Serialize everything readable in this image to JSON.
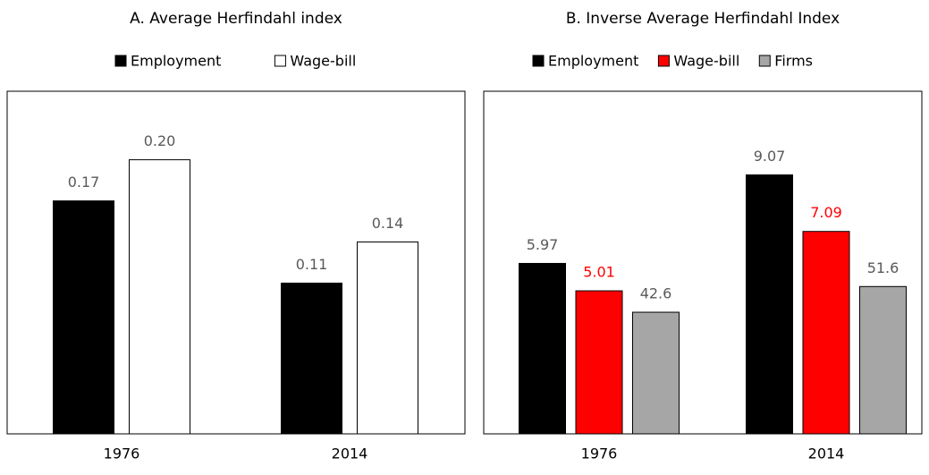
{
  "chart_data": [
    {
      "type": "bar",
      "title": "A. Average Herfindahl index",
      "categories": [
        "1976",
        "2014"
      ],
      "ylim": [
        0,
        0.25
      ],
      "series": [
        {
          "name": "Employment",
          "color": "#000000",
          "label_color": "#595959",
          "values": [
            0.17,
            0.11
          ],
          "value_labels": [
            "0.17",
            "0.11"
          ]
        },
        {
          "name": "Wage-bill",
          "color": "#ffffff",
          "label_color": "#595959",
          "values": [
            0.2,
            0.14
          ],
          "value_labels": [
            "0.20",
            "0.14"
          ]
        }
      ]
    },
    {
      "type": "bar",
      "title": "B. Inverse Average Herfindahl Index",
      "categories": [
        "1976",
        "2014"
      ],
      "ylim": [
        0,
        12
      ],
      "y2lim": [
        0,
        120
      ],
      "series": [
        {
          "name": "Employment",
          "color": "#000000",
          "label_color": "#595959",
          "values": [
            5.97,
            9.07
          ],
          "value_labels": [
            "5.97",
            "9.07"
          ]
        },
        {
          "name": "Wage-bill",
          "color": "#ff0000",
          "label_color": "#ff0000",
          "values": [
            5.01,
            7.09
          ],
          "value_labels": [
            "5.01",
            "7.09"
          ]
        },
        {
          "name": "Firms",
          "color": "#a6a6a6",
          "label_color": "#595959",
          "axis": "y2",
          "values": [
            42.6,
            51.6
          ],
          "value_labels": [
            "42.6",
            "51.6"
          ]
        }
      ]
    }
  ]
}
